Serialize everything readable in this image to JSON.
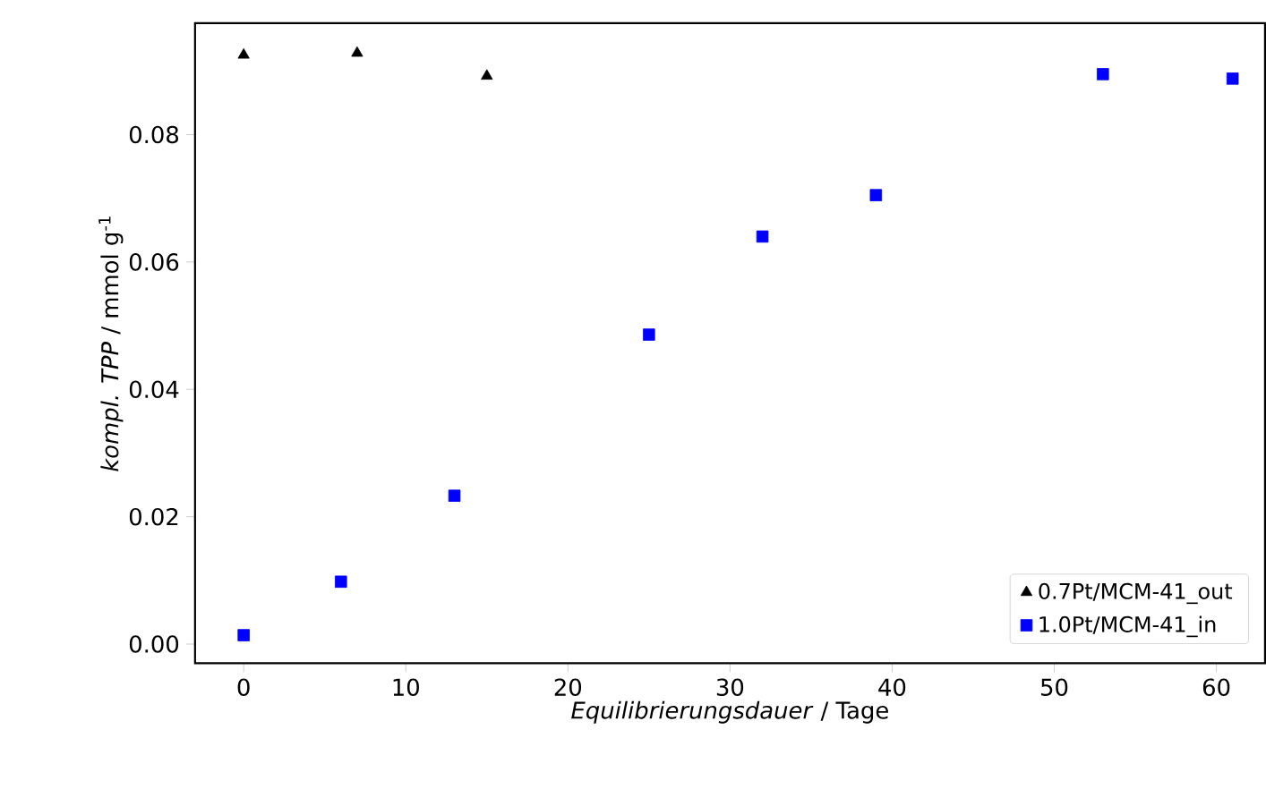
{
  "chart_data": {
    "type": "scatter",
    "xlabel": "*Equilibrierungsdauer* / Tage",
    "ylabel": "*kompl. TPP* / mmol g$^{-1}$",
    "series": [
      {
        "name": "0.7Pt/MCM-41_out",
        "color": "#000000",
        "marker": "triangle",
        "x": [
          0,
          7,
          15
        ],
        "values": [
          0.0925,
          0.0928,
          0.0892
        ]
      },
      {
        "name": "1.0Pt/MCM-41_in",
        "color": "#0000ff",
        "marker": "square",
        "x": [
          0,
          6,
          13,
          25,
          32,
          39,
          53,
          61
        ],
        "values": [
          0.0014,
          0.0098,
          0.0233,
          0.0486,
          0.064,
          0.0705,
          0.0895,
          0.0888
        ]
      }
    ],
    "xlim": [
      -3,
      63
    ],
    "ylim": [
      -0.003,
      0.0975
    ],
    "xticks": [
      0,
      10,
      20,
      30,
      40,
      50,
      60
    ],
    "yticks": [
      {
        "value": 0,
        "label": "0.00"
      },
      {
        "value": 0.02,
        "label": "0.02"
      },
      {
        "value": 0.04,
        "label": "0.04"
      },
      {
        "value": 0.06,
        "label": "0.06"
      },
      {
        "value": 0.08,
        "label": "0.08"
      }
    ],
    "grid": false,
    "legend": "bottom right"
  }
}
